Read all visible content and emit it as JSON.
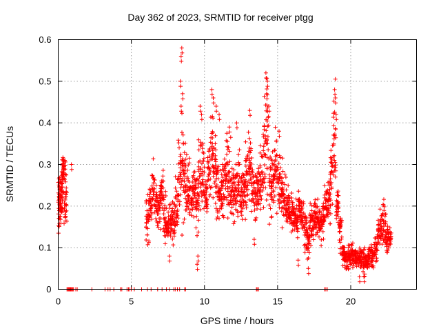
{
  "chart_data": {
    "type": "scatter",
    "title": "Day 362 of 2023, SRMTID for receiver ptgg",
    "xlabel": "GPS time / hours",
    "ylabel": "SRMTID / TECUs",
    "xlim": [
      0,
      24.5
    ],
    "ylim": [
      0,
      0.6
    ],
    "xticks": [
      0,
      5,
      10,
      15,
      20
    ],
    "yticks": [
      0,
      0.1,
      0.2,
      0.3,
      0.4,
      0.5,
      0.6
    ],
    "grid": true,
    "marker": "+",
    "color": "#ff0000",
    "segments": [
      [
        0.0,
        0.23,
        0.06
      ],
      [
        0.1,
        0.19,
        0.05
      ],
      [
        0.2,
        0.22,
        0.05
      ],
      [
        0.3,
        0.26,
        0.05
      ],
      [
        0.4,
        0.29,
        0.03
      ],
      [
        0.5,
        0.2,
        0.07
      ],
      [
        6.1,
        0.16,
        0.06
      ],
      [
        6.3,
        0.2,
        0.06
      ],
      [
        6.5,
        0.24,
        0.06
      ],
      [
        6.7,
        0.21,
        0.05
      ],
      [
        6.9,
        0.2,
        0.06
      ],
      [
        7.1,
        0.23,
        0.06
      ],
      [
        7.3,
        0.17,
        0.05
      ],
      [
        7.5,
        0.15,
        0.05
      ],
      [
        7.7,
        0.17,
        0.05
      ],
      [
        7.9,
        0.16,
        0.06
      ],
      [
        8.1,
        0.2,
        0.07
      ],
      [
        8.3,
        0.29,
        0.1
      ],
      [
        8.5,
        0.3,
        0.15
      ],
      [
        8.7,
        0.25,
        0.09
      ],
      [
        8.9,
        0.25,
        0.07
      ],
      [
        9.1,
        0.22,
        0.06
      ],
      [
        9.3,
        0.24,
        0.05
      ],
      [
        9.5,
        0.21,
        0.08
      ],
      [
        9.7,
        0.26,
        0.1
      ],
      [
        9.9,
        0.28,
        0.09
      ],
      [
        10.1,
        0.22,
        0.06
      ],
      [
        10.3,
        0.27,
        0.07
      ],
      [
        10.5,
        0.33,
        0.11
      ],
      [
        10.7,
        0.3,
        0.1
      ],
      [
        10.9,
        0.24,
        0.08
      ],
      [
        11.1,
        0.24,
        0.06
      ],
      [
        11.3,
        0.25,
        0.08
      ],
      [
        11.5,
        0.29,
        0.1
      ],
      [
        11.7,
        0.26,
        0.1
      ],
      [
        11.9,
        0.22,
        0.08
      ],
      [
        12.1,
        0.24,
        0.06
      ],
      [
        12.3,
        0.25,
        0.07
      ],
      [
        12.5,
        0.22,
        0.06
      ],
      [
        12.7,
        0.24,
        0.07
      ],
      [
        12.9,
        0.27,
        0.08
      ],
      [
        13.1,
        0.3,
        0.08
      ],
      [
        13.3,
        0.26,
        0.08
      ],
      [
        13.5,
        0.22,
        0.06
      ],
      [
        13.7,
        0.24,
        0.07
      ],
      [
        13.9,
        0.26,
        0.08
      ],
      [
        14.1,
        0.33,
        0.14
      ],
      [
        14.3,
        0.35,
        0.15
      ],
      [
        14.5,
        0.25,
        0.08
      ],
      [
        14.7,
        0.26,
        0.07
      ],
      [
        14.9,
        0.29,
        0.08
      ],
      [
        15.1,
        0.26,
        0.07
      ],
      [
        15.3,
        0.24,
        0.08
      ],
      [
        15.5,
        0.21,
        0.06
      ],
      [
        15.7,
        0.2,
        0.05
      ],
      [
        15.9,
        0.18,
        0.05
      ],
      [
        16.1,
        0.18,
        0.05
      ],
      [
        16.3,
        0.17,
        0.05
      ],
      [
        16.5,
        0.2,
        0.05
      ],
      [
        16.7,
        0.18,
        0.05
      ],
      [
        16.9,
        0.14,
        0.05
      ],
      [
        17.1,
        0.12,
        0.05
      ],
      [
        17.3,
        0.16,
        0.05
      ],
      [
        17.5,
        0.17,
        0.05
      ],
      [
        17.7,
        0.17,
        0.05
      ],
      [
        17.9,
        0.16,
        0.05
      ],
      [
        18.1,
        0.18,
        0.05
      ],
      [
        18.3,
        0.2,
        0.05
      ],
      [
        18.5,
        0.2,
        0.05
      ],
      [
        18.7,
        0.27,
        0.08
      ],
      [
        18.9,
        0.35,
        0.12
      ],
      [
        19.1,
        0.2,
        0.05
      ],
      [
        19.3,
        0.14,
        0.04
      ],
      [
        19.5,
        0.09,
        0.03
      ],
      [
        19.7,
        0.07,
        0.02
      ],
      [
        19.9,
        0.08,
        0.03
      ],
      [
        20.1,
        0.08,
        0.03
      ],
      [
        20.3,
        0.08,
        0.02
      ],
      [
        20.5,
        0.07,
        0.02
      ],
      [
        20.7,
        0.07,
        0.03
      ],
      [
        20.9,
        0.07,
        0.03
      ],
      [
        21.1,
        0.07,
        0.02
      ],
      [
        21.3,
        0.08,
        0.03
      ],
      [
        21.5,
        0.08,
        0.03
      ],
      [
        21.7,
        0.1,
        0.03
      ],
      [
        21.9,
        0.13,
        0.04
      ],
      [
        22.1,
        0.15,
        0.05
      ],
      [
        22.3,
        0.16,
        0.05
      ],
      [
        22.5,
        0.12,
        0.04
      ],
      [
        22.7,
        0.12,
        0.03
      ]
    ],
    "peaks": [
      [
        8.45,
        0.58
      ],
      [
        8.4,
        0.56
      ],
      [
        8.35,
        0.5
      ],
      [
        8.5,
        0.47
      ],
      [
        8.4,
        0.44
      ],
      [
        10.5,
        0.48
      ],
      [
        10.6,
        0.46
      ],
      [
        10.8,
        0.44
      ],
      [
        11.0,
        0.42
      ],
      [
        9.7,
        0.44
      ],
      [
        9.8,
        0.42
      ],
      [
        14.2,
        0.52
      ],
      [
        14.3,
        0.5
      ],
      [
        14.25,
        0.47
      ],
      [
        14.4,
        0.44
      ],
      [
        18.9,
        0.48
      ],
      [
        18.95,
        0.46
      ],
      [
        19.0,
        0.42
      ],
      [
        13.1,
        0.43
      ],
      [
        12.2,
        0.4
      ],
      [
        11.7,
        0.39
      ],
      [
        15.1,
        0.38
      ],
      [
        0.45,
        0.31
      ],
      [
        0.9,
        0.3
      ],
      [
        9.5,
        0.06
      ],
      [
        9.55,
        0.08
      ],
      [
        17.1,
        0.05
      ],
      [
        16.4,
        0.07
      ],
      [
        20.6,
        0.03
      ],
      [
        20.9,
        0.03
      ],
      [
        7.6,
        0.08
      ],
      [
        13.4,
        0.12
      ]
    ],
    "zero_points": [
      0.6,
      0.65,
      0.7,
      0.75,
      0.8,
      0.85,
      0.9,
      0.95,
      1.0,
      1.05,
      1.2,
      1.3,
      2.3,
      3.2,
      3.4,
      3.55,
      3.8,
      4.25,
      4.35,
      4.7,
      4.8,
      4.9,
      5.0,
      5.2,
      5.7,
      6.1,
      6.35,
      6.8,
      7.1,
      7.4,
      7.6,
      7.9,
      8.0,
      8.15,
      8.3,
      8.65,
      8.7,
      13.55,
      13.6,
      13.7,
      18.2,
      18.3,
      18.4
    ]
  }
}
